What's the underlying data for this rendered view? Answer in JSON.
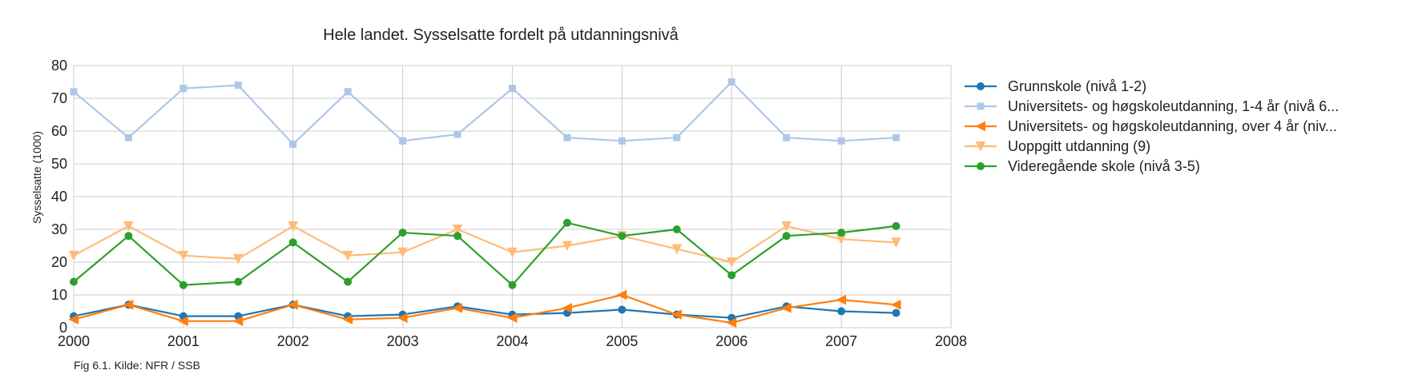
{
  "chart_data": {
    "type": "line",
    "title": "Hele landet. Sysselsatte fordelt på utdanningsnivå",
    "ylabel": "Sysselsatte (1000)",
    "xlabel": "",
    "xlim": [
      2000,
      2008
    ],
    "ylim": [
      0,
      80
    ],
    "x_ticks": [
      2000,
      2001,
      2002,
      2003,
      2004,
      2005,
      2006,
      2007,
      2008
    ],
    "y_ticks": [
      0,
      10,
      20,
      30,
      40,
      50,
      60,
      70,
      80
    ],
    "grid": true,
    "legend_position": "right",
    "x": [
      2000,
      2000.5,
      2001,
      2001.5,
      2002,
      2002.5,
      2003,
      2003.5,
      2004,
      2004.5,
      2005,
      2005.5,
      2006,
      2006.5,
      2007,
      2007.5
    ],
    "series": [
      {
        "name": "Grunnskole (nivå 1-2)",
        "legend_label": "Grunnskole (nivå 1-2)",
        "color": "#1f77b4",
        "marker": "circle",
        "values": [
          3.5,
          7,
          3.5,
          3.5,
          7,
          3.5,
          4,
          6.5,
          4,
          4.5,
          5.5,
          4,
          3,
          6.5,
          5,
          4.5
        ]
      },
      {
        "name": "Universitets- og høgskoleutdanning, 1-4 år (nivå 6...",
        "legend_label": "Universitets- og høgskoleutdanning, 1-4 år (nivå 6...",
        "color": "#aec7e8",
        "marker": "square",
        "values": [
          72,
          58,
          73,
          74,
          56,
          72,
          57,
          59,
          73,
          58,
          57,
          58,
          75,
          58,
          57,
          58
        ]
      },
      {
        "name": "Universitets- og høgskoleutdanning, over 4 år (niv...",
        "legend_label": "Universitets- og høgskoleutdanning, over 4 år (niv...",
        "color": "#ff7f0e",
        "marker": "triangle-left",
        "values": [
          2.5,
          7,
          2,
          2,
          7,
          2.5,
          3,
          6,
          3,
          6,
          10,
          4,
          1.5,
          6,
          8.5,
          7
        ]
      },
      {
        "name": "Uoppgitt utdanning (9)",
        "legend_label": "Uoppgitt utdanning (9)",
        "color": "#ffbb78",
        "marker": "triangle-down",
        "values": [
          22,
          31,
          22,
          21,
          31,
          22,
          23,
          30,
          23,
          25,
          28,
          24,
          20,
          31,
          27,
          26
        ]
      },
      {
        "name": "Videregående skole (nivå 3-5)",
        "legend_label": "Videregående skole (nivå 3-5)",
        "color": "#2ca02c",
        "marker": "circle",
        "values": [
          14,
          28,
          13,
          14,
          26,
          14,
          29,
          28,
          13,
          32,
          28,
          30,
          16,
          28,
          29,
          31
        ]
      }
    ],
    "caption": "Fig 6.1. Kilde: NFR / SSB"
  }
}
